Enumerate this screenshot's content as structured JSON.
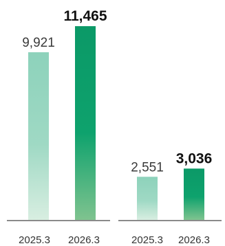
{
  "chart_data": [
    {
      "type": "bar",
      "categories": [
        "2025.3",
        "2026.3"
      ],
      "values": [
        9921,
        11465
      ],
      "value_labels": [
        "9,921",
        "11,465"
      ],
      "ylim": [
        0,
        12000
      ],
      "grid": false,
      "colors": {
        "prior_year": [
          "#d8eee1",
          "#9fd9c4",
          "#8dd2bb"
        ],
        "current_year": [
          "#7fc38f",
          "#0ea26d",
          "#0b9967"
        ],
        "label_prior": "#3a3a3a",
        "label_current": "#111111",
        "axis": "#444444"
      }
    },
    {
      "type": "bar",
      "categories": [
        "2025.3",
        "2026.3"
      ],
      "values": [
        2551,
        3036
      ],
      "value_labels": [
        "2,551",
        "3,036"
      ],
      "ylim": [
        0,
        12000
      ],
      "grid": false,
      "colors": {
        "prior_year": [
          "#d8eee1",
          "#9fd9c4",
          "#8dd2bb"
        ],
        "current_year": [
          "#7fc38f",
          "#0ea26d",
          "#0b9967"
        ],
        "label_prior": "#3a3a3a",
        "label_current": "#111111",
        "axis": "#444444"
      }
    }
  ]
}
